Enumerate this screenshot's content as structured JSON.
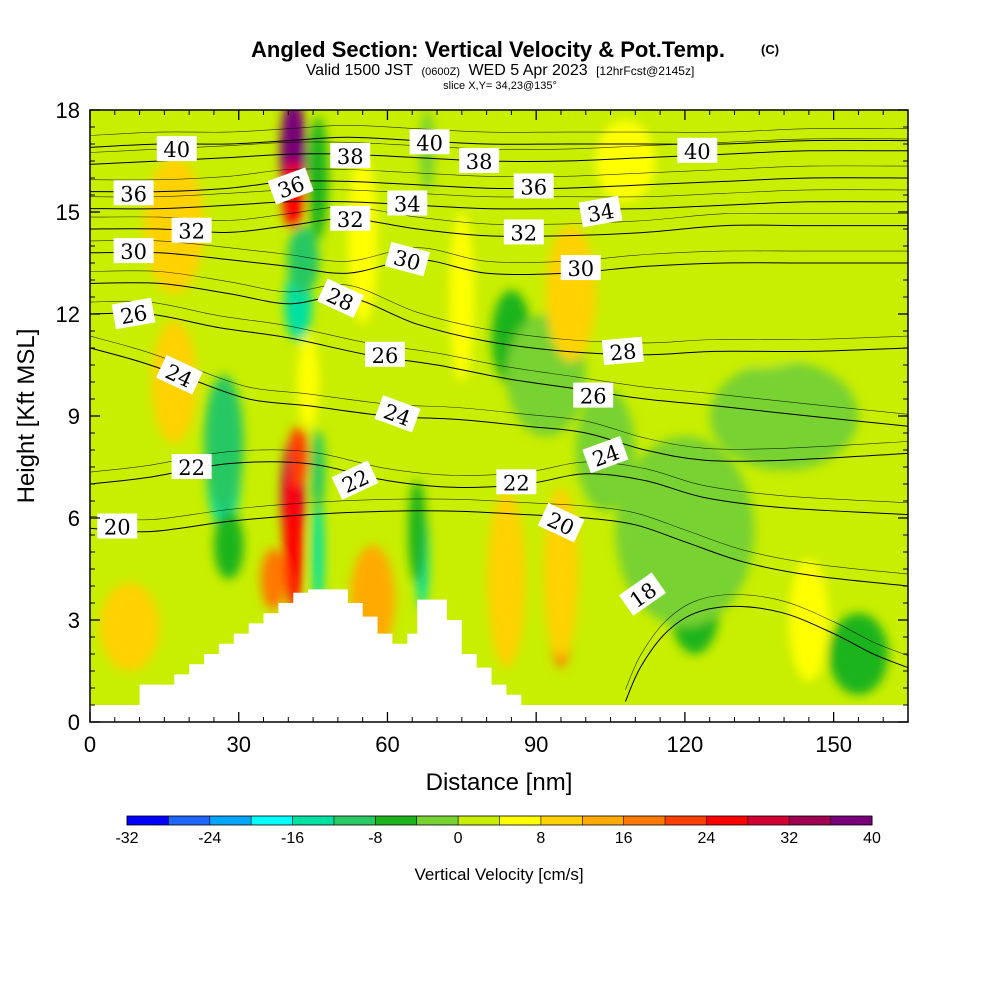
{
  "chart_data": {
    "type": "heatmap",
    "title": "Angled Section: Vertical Velocity & Pot.Temp.",
    "title_mark": "(C)",
    "subtitle": {
      "valid": "Valid 1500 JST",
      "utc": "(0600Z)",
      "date": "WED 5 Apr 2023",
      "fcst": "[12hrFcst@2145z]"
    },
    "slice_text": "slice X,Y= 34,23@135°",
    "xlabel": "Distance [nm]",
    "ylabel": "Height [Kft MSL]",
    "xlim": [
      0,
      165
    ],
    "ylim": [
      0,
      18
    ],
    "xticks": [
      0,
      30,
      60,
      90,
      120,
      150
    ],
    "yticks": [
      0,
      3,
      6,
      9,
      12,
      15,
      18
    ],
    "colorbar": {
      "label": "Vertical Velocity [cm/s]",
      "min": -32,
      "max": 40,
      "step": 4,
      "ticks": [
        -32,
        -24,
        -16,
        -8,
        0,
        8,
        16,
        24,
        32,
        40
      ],
      "colors": [
        "#0000ff",
        "#1e66ff",
        "#00a5ff",
        "#00ffff",
        "#00e0a0",
        "#28c864",
        "#1eb41e",
        "#78d232",
        "#c8ee00",
        "#ffff00",
        "#ffd200",
        "#ffaa00",
        "#ff7800",
        "#ff4000",
        "#ff0000",
        "#d20032",
        "#a00050",
        "#780078"
      ]
    },
    "terrain": [
      [
        0,
        0.5
      ],
      [
        10,
        0.5
      ],
      [
        10,
        1.1
      ],
      [
        17,
        1.1
      ],
      [
        17,
        1.4
      ],
      [
        20,
        1.4
      ],
      [
        20,
        1.7
      ],
      [
        23,
        1.7
      ],
      [
        23,
        2.0
      ],
      [
        26,
        2.0
      ],
      [
        26,
        2.3
      ],
      [
        29,
        2.3
      ],
      [
        29,
        2.6
      ],
      [
        32,
        2.6
      ],
      [
        32,
        2.9
      ],
      [
        35,
        2.9
      ],
      [
        35,
        3.2
      ],
      [
        38,
        3.2
      ],
      [
        38,
        3.5
      ],
      [
        41,
        3.5
      ],
      [
        41,
        3.8
      ],
      [
        44,
        3.8
      ],
      [
        44,
        3.9
      ],
      [
        52,
        3.9
      ],
      [
        52,
        3.5
      ],
      [
        55,
        3.5
      ],
      [
        55,
        3.1
      ],
      [
        58,
        3.1
      ],
      [
        58,
        2.6
      ],
      [
        61,
        2.6
      ],
      [
        61,
        2.3
      ],
      [
        64,
        2.3
      ],
      [
        64,
        2.6
      ],
      [
        66,
        2.6
      ],
      [
        66,
        3.6
      ],
      [
        72,
        3.6
      ],
      [
        72,
        3.0
      ],
      [
        75,
        3.0
      ],
      [
        75,
        2.0
      ],
      [
        78,
        2.0
      ],
      [
        78,
        1.6
      ],
      [
        81,
        1.6
      ],
      [
        81,
        1.1
      ],
      [
        84,
        1.1
      ],
      [
        84,
        0.8
      ],
      [
        87,
        0.8
      ],
      [
        87,
        0.5
      ],
      [
        165,
        0.5
      ]
    ],
    "velocity_features": [
      {
        "x": 41,
        "y": 16.8,
        "rx": 2.6,
        "ry": 1.6,
        "value": 36
      },
      {
        "x": 41,
        "y": 15.5,
        "rx": 2.2,
        "ry": 1.0,
        "value": 26
      },
      {
        "x": 41,
        "y": 6.6,
        "rx": 2.4,
        "ry": 1.8,
        "value": 32
      },
      {
        "x": 41,
        "y": 5.5,
        "rx": 2.0,
        "ry": 2.2,
        "value": 26
      },
      {
        "x": 37,
        "y": 4.2,
        "rx": 2.5,
        "ry": 0.9,
        "value": 18
      },
      {
        "x": 42,
        "y": 7.8,
        "rx": 2.0,
        "ry": 0.9,
        "value": 20
      },
      {
        "x": 46,
        "y": 5.0,
        "rx": 1.2,
        "ry": 1.8,
        "value": -14
      },
      {
        "x": 46,
        "y": 7.4,
        "rx": 1.4,
        "ry": 1.2,
        "value": -10
      },
      {
        "x": 42,
        "y": 12.3,
        "rx": 2.8,
        "ry": 1.1,
        "value": -16
      },
      {
        "x": 43,
        "y": 13.6,
        "rx": 3.2,
        "ry": 1.0,
        "value": -9
      },
      {
        "x": 46,
        "y": 16.0,
        "rx": 2.0,
        "ry": 1.8,
        "value": -5
      },
      {
        "x": 27,
        "y": 7.4,
        "rx": 3.5,
        "ry": 1.7,
        "value": -16
      },
      {
        "x": 27,
        "y": 8.2,
        "rx": 4.0,
        "ry": 2.0,
        "value": -10
      },
      {
        "x": 28,
        "y": 5.2,
        "rx": 3.0,
        "ry": 1.0,
        "value": -6
      },
      {
        "x": 67,
        "y": 4.8,
        "rx": 1.3,
        "ry": 1.5,
        "value": -14
      },
      {
        "x": 66,
        "y": 5.6,
        "rx": 1.8,
        "ry": 1.5,
        "value": -7
      },
      {
        "x": 68,
        "y": 16.8,
        "rx": 1.5,
        "ry": 1.2,
        "value": -4
      },
      {
        "x": 84,
        "y": 3.4,
        "rx": 2.5,
        "ry": 1.8,
        "value": 18
      },
      {
        "x": 84,
        "y": 4.2,
        "rx": 3.8,
        "ry": 2.6,
        "value": 10
      },
      {
        "x": 95,
        "y": 3.4,
        "rx": 2.5,
        "ry": 1.8,
        "value": 18
      },
      {
        "x": 95,
        "y": 4.4,
        "rx": 3.5,
        "ry": 2.5,
        "value": 10
      },
      {
        "x": 57,
        "y": 3.6,
        "rx": 4.5,
        "ry": 1.6,
        "value": 12
      },
      {
        "x": 85,
        "y": 11.3,
        "rx": 4.0,
        "ry": 1.4,
        "value": -6
      },
      {
        "x": 92,
        "y": 10.2,
        "rx": 8.0,
        "ry": 1.8,
        "value": -3
      },
      {
        "x": 122,
        "y": 3.4,
        "rx": 5.0,
        "ry": 1.4,
        "value": -7
      },
      {
        "x": 120,
        "y": 5.6,
        "rx": 14.0,
        "ry": 2.8,
        "value": -2
      },
      {
        "x": 104,
        "y": 8.0,
        "rx": 6.0,
        "ry": 1.8,
        "value": -4
      },
      {
        "x": 140,
        "y": 9.0,
        "rx": 15.0,
        "ry": 1.6,
        "value": -1
      },
      {
        "x": 17,
        "y": 14.6,
        "rx": 6.0,
        "ry": 2.0,
        "value": 10
      },
      {
        "x": 17,
        "y": 10.0,
        "rx": 4.5,
        "ry": 1.8,
        "value": 10
      },
      {
        "x": 8,
        "y": 2.8,
        "rx": 6.0,
        "ry": 1.3,
        "value": 8
      },
      {
        "x": 44,
        "y": 10.0,
        "rx": 2.2,
        "ry": 1.4,
        "value": 6
      },
      {
        "x": 55,
        "y": 14.2,
        "rx": 3.0,
        "ry": 2.5,
        "value": 7
      },
      {
        "x": 75,
        "y": 12.5,
        "rx": 2.5,
        "ry": 2.5,
        "value": 6
      },
      {
        "x": 97,
        "y": 12.6,
        "rx": 5.0,
        "ry": 2.0,
        "value": 8
      },
      {
        "x": 108,
        "y": 16.5,
        "rx": 6.0,
        "ry": 1.2,
        "value": 5
      },
      {
        "x": 135,
        "y": 12.6,
        "rx": 18.0,
        "ry": 2.2,
        "value": 3
      },
      {
        "x": 145,
        "y": 3.0,
        "rx": 4.0,
        "ry": 1.8,
        "value": 4
      },
      {
        "x": 155,
        "y": 2.0,
        "rx": 6.0,
        "ry": 1.2,
        "value": -5
      }
    ],
    "theta_contours": [
      {
        "value": 18,
        "pts": [
          [
            108,
            0.6
          ],
          [
            111,
            1.6
          ],
          [
            116,
            2.6
          ],
          [
            122,
            3.2
          ],
          [
            130,
            3.4
          ],
          [
            140,
            3.2
          ],
          [
            150,
            2.6
          ],
          [
            158,
            2.0
          ],
          [
            165,
            1.6
          ]
        ]
      },
      {
        "value": 20,
        "pts": [
          [
            0,
            5.7
          ],
          [
            12,
            5.6
          ],
          [
            28,
            5.9
          ],
          [
            44,
            6.1
          ],
          [
            60,
            6.2
          ],
          [
            74,
            6.2
          ],
          [
            88,
            6.1
          ],
          [
            100,
            6.0
          ],
          [
            110,
            5.8
          ],
          [
            120,
            5.3
          ],
          [
            132,
            4.7
          ],
          [
            146,
            4.3
          ],
          [
            165,
            4.0
          ]
        ]
      },
      {
        "value": 22,
        "pts": [
          [
            0,
            7.0
          ],
          [
            12,
            7.2
          ],
          [
            28,
            7.6
          ],
          [
            44,
            7.6
          ],
          [
            60,
            7.1
          ],
          [
            74,
            6.9
          ],
          [
            88,
            7.0
          ],
          [
            100,
            7.3
          ],
          [
            112,
            7.1
          ],
          [
            124,
            6.6
          ],
          [
            140,
            6.3
          ],
          [
            165,
            6.1
          ]
        ]
      },
      {
        "value": 24,
        "pts": [
          [
            0,
            11.0
          ],
          [
            10,
            10.6
          ],
          [
            20,
            10.1
          ],
          [
            32,
            9.5
          ],
          [
            44,
            9.3
          ],
          [
            60,
            9.0
          ],
          [
            74,
            8.9
          ],
          [
            88,
            8.7
          ],
          [
            100,
            8.5
          ],
          [
            112,
            8.0
          ],
          [
            124,
            7.7
          ],
          [
            140,
            7.7
          ],
          [
            165,
            7.9
          ]
        ]
      },
      {
        "value": 26,
        "pts": [
          [
            0,
            12.0
          ],
          [
            12,
            12.0
          ],
          [
            26,
            11.6
          ],
          [
            40,
            11.3
          ],
          [
            56,
            10.8
          ],
          [
            70,
            10.5
          ],
          [
            84,
            10.1
          ],
          [
            98,
            9.8
          ],
          [
            112,
            9.5
          ],
          [
            126,
            9.3
          ],
          [
            145,
            9.0
          ],
          [
            165,
            8.7
          ]
        ]
      },
      {
        "value": 28,
        "pts": [
          [
            0,
            12.9
          ],
          [
            14,
            12.9
          ],
          [
            28,
            12.6
          ],
          [
            40,
            12.3
          ],
          [
            52,
            12.5
          ],
          [
            66,
            11.7
          ],
          [
            80,
            11.2
          ],
          [
            96,
            10.9
          ],
          [
            112,
            10.8
          ],
          [
            126,
            10.9
          ],
          [
            145,
            10.9
          ],
          [
            165,
            11.0
          ]
        ]
      },
      {
        "value": 30,
        "pts": [
          [
            0,
            13.8
          ],
          [
            14,
            13.8
          ],
          [
            28,
            13.6
          ],
          [
            40,
            13.4
          ],
          [
            52,
            13.2
          ],
          [
            66,
            13.6
          ],
          [
            80,
            13.2
          ],
          [
            96,
            13.2
          ],
          [
            112,
            13.4
          ],
          [
            128,
            13.5
          ],
          [
            145,
            13.5
          ],
          [
            165,
            13.5
          ]
        ]
      },
      {
        "value": 32,
        "pts": [
          [
            0,
            14.5
          ],
          [
            14,
            14.5
          ],
          [
            28,
            14.4
          ],
          [
            40,
            14.6
          ],
          [
            52,
            14.8
          ],
          [
            66,
            14.5
          ],
          [
            80,
            14.3
          ],
          [
            96,
            14.3
          ],
          [
            112,
            14.4
          ],
          [
            128,
            14.6
          ],
          [
            145,
            14.6
          ],
          [
            165,
            14.6
          ]
        ]
      },
      {
        "value": 34,
        "pts": [
          [
            0,
            15.1
          ],
          [
            14,
            15.1
          ],
          [
            28,
            15.2
          ],
          [
            40,
            15.3
          ],
          [
            52,
            15.3
          ],
          [
            66,
            15.2
          ],
          [
            80,
            15.1
          ],
          [
            96,
            15.1
          ],
          [
            112,
            15.1
          ],
          [
            128,
            15.2
          ],
          [
            145,
            15.3
          ],
          [
            165,
            15.3
          ]
        ]
      },
      {
        "value": 36,
        "pts": [
          [
            0,
            15.6
          ],
          [
            14,
            15.6
          ],
          [
            28,
            15.7
          ],
          [
            40,
            15.9
          ],
          [
            52,
            15.9
          ],
          [
            66,
            15.8
          ],
          [
            80,
            15.7
          ],
          [
            96,
            15.7
          ],
          [
            112,
            15.8
          ],
          [
            128,
            15.9
          ],
          [
            145,
            16.0
          ],
          [
            165,
            16.0
          ]
        ]
      },
      {
        "value": 38,
        "pts": [
          [
            0,
            16.4
          ],
          [
            14,
            16.5
          ],
          [
            28,
            16.6
          ],
          [
            40,
            16.7
          ],
          [
            52,
            16.7
          ],
          [
            66,
            16.6
          ],
          [
            80,
            16.5
          ],
          [
            96,
            16.5
          ],
          [
            112,
            16.6
          ],
          [
            128,
            16.7
          ],
          [
            145,
            16.8
          ],
          [
            165,
            16.8
          ]
        ]
      },
      {
        "value": 40,
        "pts": [
          [
            0,
            16.9
          ],
          [
            14,
            17.0
          ],
          [
            28,
            17.0
          ],
          [
            40,
            17.1
          ],
          [
            52,
            17.2
          ],
          [
            66,
            17.1
          ],
          [
            80,
            17.0
          ],
          [
            96,
            17.0
          ],
          [
            112,
            17.0
          ],
          [
            128,
            17.0
          ],
          [
            145,
            17.1
          ],
          [
            165,
            17.1
          ]
        ]
      }
    ],
    "contour_labels": [
      {
        "text": "40",
        "x": 17.5,
        "y": 16.85,
        "angle": 0
      },
      {
        "text": "40",
        "x": 68.5,
        "y": 17.05,
        "angle": 0
      },
      {
        "text": "40",
        "x": 122.5,
        "y": 16.8,
        "angle": 0
      },
      {
        "text": "38",
        "x": 52.5,
        "y": 16.65,
        "angle": 0
      },
      {
        "text": "38",
        "x": 78.5,
        "y": 16.5,
        "angle": 0
      },
      {
        "text": "36",
        "x": 8.8,
        "y": 15.55,
        "angle": 0
      },
      {
        "text": "36",
        "x": 40.5,
        "y": 15.75,
        "angle": -20
      },
      {
        "text": "36",
        "x": 89.5,
        "y": 15.75,
        "angle": 0
      },
      {
        "text": "34",
        "x": 64,
        "y": 15.25,
        "angle": 0
      },
      {
        "text": "34",
        "x": 103,
        "y": 15.0,
        "angle": -10
      },
      {
        "text": "32",
        "x": 20.5,
        "y": 14.45,
        "angle": 0
      },
      {
        "text": "32",
        "x": 52.5,
        "y": 14.8,
        "angle": 0
      },
      {
        "text": "32",
        "x": 87.5,
        "y": 14.4,
        "angle": 0
      },
      {
        "text": "30",
        "x": 8.8,
        "y": 13.85,
        "angle": 0
      },
      {
        "text": "30",
        "x": 64,
        "y": 13.6,
        "angle": 15
      },
      {
        "text": "30",
        "x": 99,
        "y": 13.35,
        "angle": 0
      },
      {
        "text": "28",
        "x": 50.5,
        "y": 12.45,
        "angle": 25
      },
      {
        "text": "28",
        "x": 107.5,
        "y": 10.9,
        "angle": -5
      },
      {
        "text": "26",
        "x": 8.8,
        "y": 12.0,
        "angle": -10
      },
      {
        "text": "26",
        "x": 59.5,
        "y": 10.8,
        "angle": 0
      },
      {
        "text": "26",
        "x": 101.5,
        "y": 9.6,
        "angle": 0
      },
      {
        "text": "24",
        "x": 18,
        "y": 10.2,
        "angle": 25
      },
      {
        "text": "24",
        "x": 62,
        "y": 9.05,
        "angle": 20
      },
      {
        "text": "24",
        "x": 104,
        "y": 7.85,
        "angle": -20
      },
      {
        "text": "22",
        "x": 20.5,
        "y": 7.5,
        "angle": 0
      },
      {
        "text": "22",
        "x": 53.5,
        "y": 7.1,
        "angle": -25
      },
      {
        "text": "22",
        "x": 86,
        "y": 7.05,
        "angle": 0
      },
      {
        "text": "20",
        "x": 5.5,
        "y": 5.75,
        "angle": 0
      },
      {
        "text": "20",
        "x": 95,
        "y": 5.85,
        "angle": 25
      },
      {
        "text": "18",
        "x": 111.5,
        "y": 3.75,
        "angle": -35
      }
    ]
  }
}
